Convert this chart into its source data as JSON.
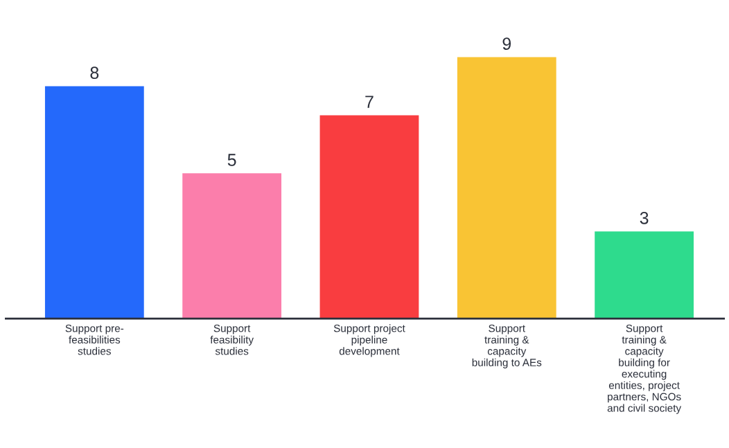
{
  "chart_data": {
    "type": "bar",
    "categories": [
      "Support pre-\nfeasibilities\nstudies",
      "Support\nfeasibility\nstudies",
      "Support project\npipeline\ndevelopment",
      "Support\ntraining &\ncapacity\nbuilding to AEs",
      "Support\ntraining &\ncapacity\nbuilding for\nexecuting\nentities, project\npartners, NGOs\nand civil society"
    ],
    "values": [
      8,
      5,
      7,
      9,
      3
    ],
    "colors": [
      "#2469fb",
      "#fb7eab",
      "#f93d40",
      "#f9c434",
      "#2edb8d"
    ],
    "data_labels": true
  }
}
